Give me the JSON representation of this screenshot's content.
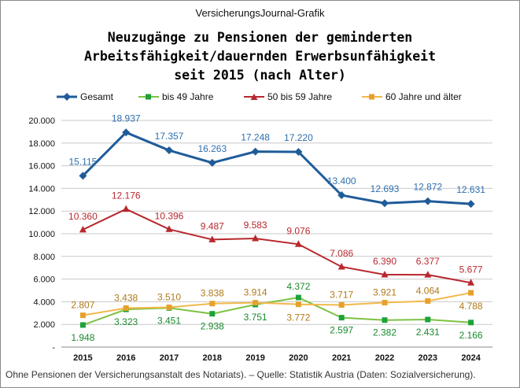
{
  "header": {
    "source_label": "VersicherungsJournal-Grafik"
  },
  "chart_data": {
    "type": "line",
    "title_lines": [
      "Neuzugänge zu Pensionen der geminderten",
      "Arbeitsfähigkeit/dauernden Erwerbsunfähigkeit",
      "seit 2015 (nach Alter)"
    ],
    "categories": [
      "2015",
      "2016",
      "2017",
      "2018",
      "2019",
      "2020",
      "2021",
      "2022",
      "2023",
      "2024"
    ],
    "ylim": [
      0,
      20000
    ],
    "yticks": [
      0,
      2000,
      4000,
      6000,
      8000,
      10000,
      12000,
      14000,
      16000,
      18000,
      20000
    ],
    "ytick_labels": [
      "-",
      "2.000",
      "4.000",
      "6.000",
      "8.000",
      "10.000",
      "12.000",
      "14.000",
      "16.000",
      "18.000",
      "20.000"
    ],
    "grid": true,
    "legend_position": "top",
    "series": [
      {
        "name": "Gesamt",
        "color": "#1f5c99",
        "marker": "diamond",
        "values": [
          15115,
          18937,
          17357,
          16263,
          17248,
          17220,
          13400,
          12693,
          12872,
          12631
        ],
        "labels": [
          "15.115",
          "18.937",
          "17.357",
          "16.263",
          "17.248",
          "17.220",
          "13.400",
          "12.693",
          "12.872",
          "12.631"
        ],
        "label_color": "#2f6fb0"
      },
      {
        "name": "bis 49 Jahre",
        "color": "#7dc242",
        "marker": "square",
        "marker_color": "#1ea23a",
        "values": [
          1948,
          3323,
          3451,
          2938,
          3751,
          4372,
          2597,
          2382,
          2431,
          2166
        ],
        "labels": [
          "1.948",
          "3.323",
          "3.451",
          "2.938",
          "3.751",
          "4.372",
          "2.597",
          "2.382",
          "2.431",
          "2.166"
        ],
        "label_color": "#1a8a2e"
      },
      {
        "name": "50 bis 59 Jahre",
        "color": "#b8282e",
        "marker": "triangle",
        "values": [
          10360,
          12176,
          10396,
          9487,
          9583,
          9076,
          7086,
          6390,
          6377,
          5677
        ],
        "labels": [
          "10.360",
          "12.176",
          "10.396",
          "9.487",
          "9.583",
          "9.076",
          "7.086",
          "6.390",
          "6.377",
          "5.677"
        ],
        "label_color": "#b8282e"
      },
      {
        "name": "60 Jahre und älter",
        "color": "#f2b84b",
        "marker": "square",
        "marker_color": "#e6a12c",
        "values": [
          2807,
          3438,
          3510,
          3838,
          3914,
          3772,
          3717,
          3921,
          4064,
          4788
        ],
        "labels": [
          "2.807",
          "3.438",
          "3.510",
          "3.838",
          "3.914",
          "3.772",
          "3.717",
          "3.921",
          "4.064",
          "4.788"
        ],
        "label_color": "#b07a1a"
      }
    ]
  },
  "footer": {
    "note": "Ohne Pensionen der Versicherungsanstalt des Notariats). – Quelle: Statistik Austria (Daten: Sozialversicherung)."
  }
}
